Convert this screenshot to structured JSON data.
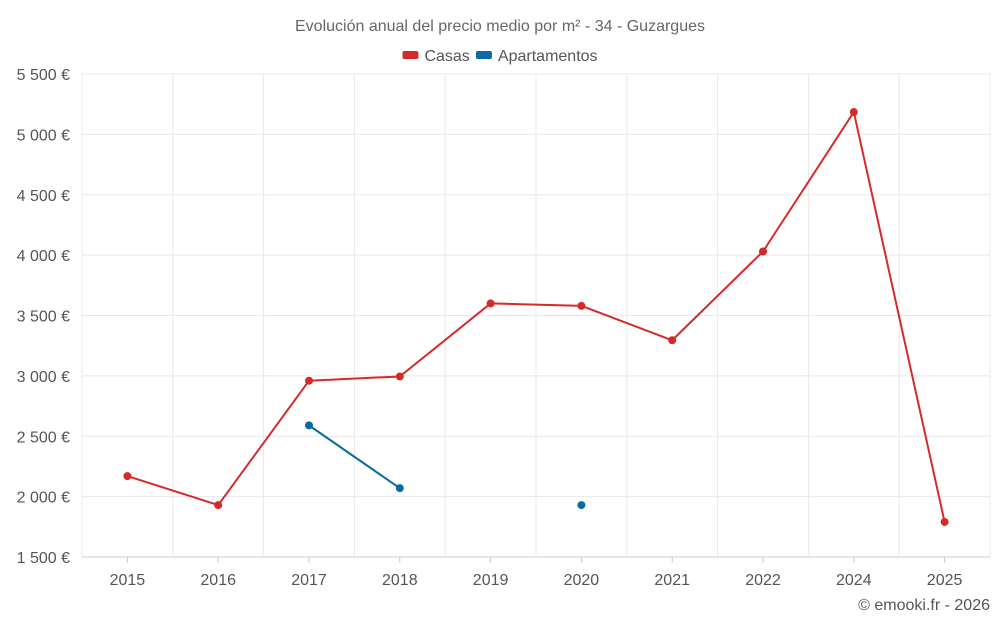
{
  "chart_data": {
    "type": "line",
    "title": "Evolución anual del precio medio por m² - 34 - Guzargues",
    "categories": [
      "2015",
      "2016",
      "2017",
      "2018",
      "2019",
      "2020",
      "2021",
      "2022",
      "2024",
      "2025"
    ],
    "series": [
      {
        "name": "Casas",
        "color": "#d42a2a",
        "values": [
          2170,
          1930,
          2960,
          2995,
          3600,
          3580,
          3295,
          4030,
          5185,
          1790
        ]
      },
      {
        "name": "Apartamentos",
        "color": "#0b6aa0",
        "values": [
          null,
          null,
          2590,
          2070,
          null,
          1930,
          null,
          null,
          null,
          null
        ]
      }
    ],
    "ylim": [
      1500,
      5500
    ],
    "yticks": [
      1500,
      2000,
      2500,
      3000,
      3500,
      4000,
      4500,
      5000,
      5500
    ],
    "ytick_labels": [
      "1 500 €",
      "2 000 €",
      "2 500 €",
      "3 000 €",
      "3 500 €",
      "4 000 €",
      "4 500 €",
      "5 000 €",
      "5 500 €"
    ],
    "xlabel": "",
    "ylabel": "",
    "grid": true,
    "legend_position": "top-center"
  },
  "credit": "© emooki.fr - 2026"
}
